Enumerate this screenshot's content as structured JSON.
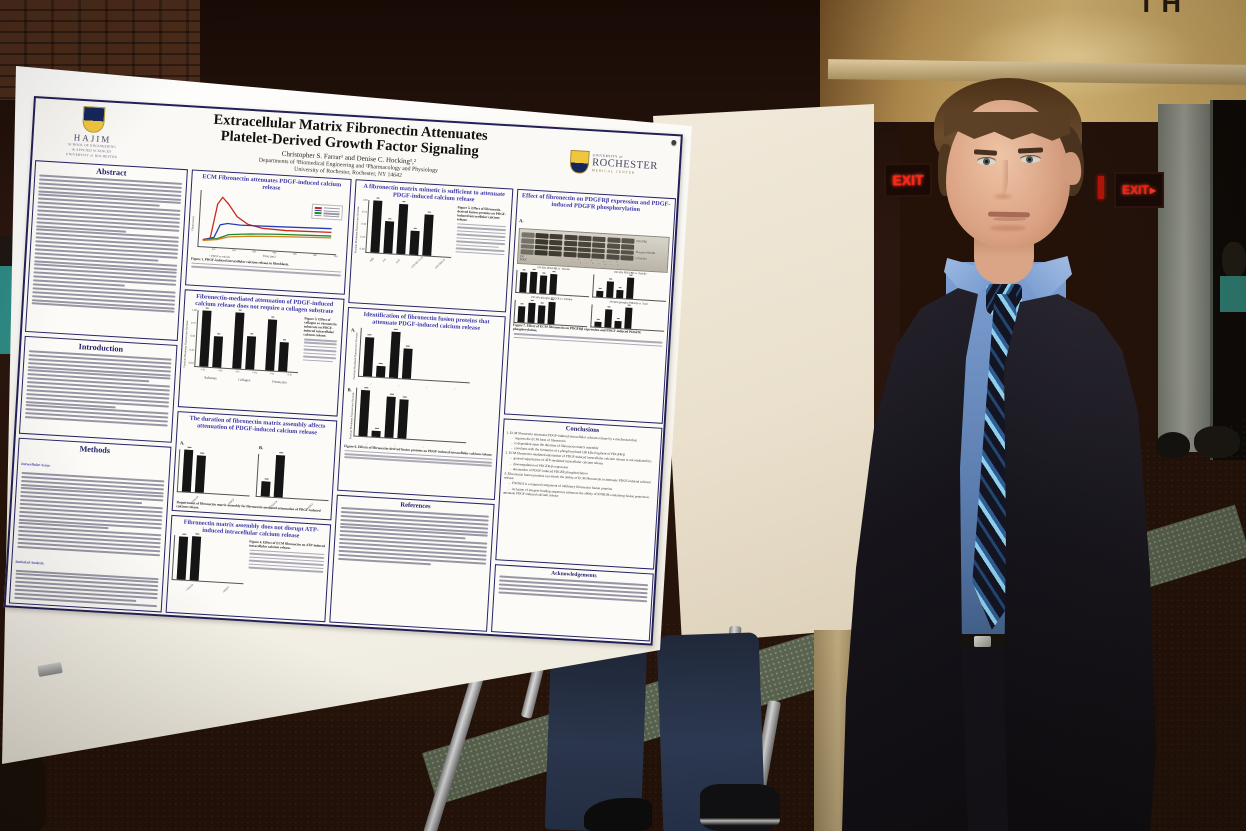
{
  "photo": {
    "top_sign_fragment": "TH",
    "exit_sign_left": "EXIT",
    "exit_sign_right": "EXIT",
    "exit_arrow": "▸"
  },
  "poster": {
    "header": {
      "title_line1": "Extracellular Matrix Fibronectin Attenuates",
      "title_line2": "Platelet-Derived Growth Factor Signaling",
      "authors": "Christopher S. Farrar¹ and Denise C. Hocking¹,²",
      "affiliations": "Departments of ¹Biomedical Engineering and ²Pharmacology and Physiology",
      "address": "University of Rochester, Rochester, NY 14642"
    },
    "hajim_logo": {
      "word": "HAJIM",
      "line1": "SCHOOL OF ENGINEERING",
      "line2": "& APPLIED SCIENCES",
      "line3": "UNIVERSITY of ROCHESTER"
    },
    "urmc_logo": {
      "line1": "UNIVERSITY of",
      "line2": "ROCHESTER",
      "line3": "MEDICAL CENTER"
    },
    "sections": {
      "abstract": "Abstract",
      "introduction": "Introduction",
      "methods": "Methods",
      "references": "References",
      "conclusions": "Conclusions",
      "acknowledgements": "Acknowledgements"
    },
    "methods_leads": {
      "assay": "Intracellular Assay:",
      "stats": "Statistical Analysis:"
    },
    "panel_letters": {
      "a": "A.",
      "b": "B.",
      "c": "C.",
      "d": "D.",
      "e": "E."
    },
    "panels": {
      "ecm": {
        "title": "ECM Fibronectin attenuates PDGF-induced calcium release",
        "ylabel": "Fluorescence",
        "xlabel": "Time (sec)",
        "annotation": "↑ PDGF or vehicle",
        "caption_lead": "Figure 1. PDGF-induced intracellular calcium release in fibroblasts."
      },
      "substrate": {
        "title": "Fibronectin-mediated attenuation of PDGF-induced calcium release does not require a collagen substrate",
        "ylabel": "Fraction Maximum Fluorescence Increase",
        "caption_lead": "Figure 3. Effect of collagen or vitronectin substrate on PDGF-induced intracellular calcium release."
      },
      "duration": {
        "title": "The duration of fibronectin matrix assembly affects attenuation of PDGF-induced calcium release",
        "caption_lead": "Requirement of fibronectin matrix assembly for fibronectin-mediated attenuation of PDGF-induced calcium release."
      },
      "atp": {
        "title": "Fibronectin matrix assembly does not disrupt ATP-induced intracellular calcium release",
        "caption_lead": "Figure 4. Effect of ECM fibronectin on ATP-induced intracellular calcium release."
      },
      "mimetic": {
        "title": "A fibronectin matrix mimetic is sufficient to attenuate PDGF-induced calcium release",
        "ylabel": "Fraction Maximum Fluorescence Increase",
        "caption_lead": "Figure 5. Effect of fibronectin-derived fusion proteins on PDGF-induced intracellular calcium release."
      },
      "identification": {
        "title": "Identification of fibronectin fusion proteins that attenuate PDGF-induced calcium release",
        "ylabel": "Fraction Maximum Fluorescence Increase",
        "caption_lead": "Figure 6. Effects of fibronectin-derived fusion proteins on PDGF-induced intracellular calcium release."
      },
      "western": {
        "title": "Effect of fibronectin on PDGFRβ expression and PDGF-induced PDGFR phosphorylation",
        "blot_labels": [
          "PDGFRβ",
          "Phospho-PDGFR",
          "α-Tubulin"
        ],
        "lane_row1_label": "FN",
        "lane_row2_label": "PDGF",
        "lane_marks": "−  +  −  +  −  +  −  +",
        "chart_titles": [
          "190 kDa PDGFRβ vs. Tubulin",
          "160 kDa PDGFRβ vs. Tubulin",
          "190 kDa phospho-PDGFR vs. Tubulin",
          "190 kDa phospho-PDGFR vs. Total"
        ],
        "caption_lead": "Figure 7. Effect of ECM fibronectin on PDGFRβ expression and PDGF-induced PDGFR phosphorylation."
      }
    },
    "conclusions_lines": [
      "1. ECM fibronectin attenuates PDGF-induced intracellular calcium release by a mechanism that:",
      "      –  requires the ECM form of fibronectin",
      "      –  is dependent upon the duration of fibronectin matrix assembly",
      "      –  correlates with the formation of a phosphorylated 190 kDa fragment of PDGFR-β",
      "2. ECM fibronectin-mediated attenuation of PDGF-induced intracellular calcium release is not mediated by:",
      "      –  general suppression of ATP-mediated intracellular calcium release",
      "      –  downregulation of PDGFR-β expression",
      "      –  attenuation of PDGF-induced PDGFR phosphorylation",
      "3. Fibronectin fusion proteins can mimic the ability of ECM fibronectin to attenuate PDGF-induced calcium release:",
      "      –  FNIII1H is a required component of inhibitory fibronectin fusion proteins",
      "      –  inclusion of integrin-binding sequences enhances the ability of FNIII1H-containing fusion proteins to attenuate PDGF-induced calcium release"
    ],
    "axis": {
      "ticks": [
        "1.00",
        "0.75",
        "0.50",
        "0.25",
        "0.00"
      ],
      "pair_labels": [
        "-FN",
        "+FN",
        "-FN",
        "+FN",
        "-FN",
        "+FN"
      ],
      "groups": [
        "Substrate",
        "Collagen",
        "Vitronectin"
      ],
      "mimetic_labels": [
        "PBS",
        "FN",
        "GST",
        "GST/III1-8,10",
        "GST/III8-10"
      ],
      "pv_labels": [
        "+Vehicle",
        "+PDGF"
      ],
      "pv_labels2": [
        "+Vehicle",
        "+PDGF"
      ]
    }
  },
  "chart_data": {
    "pdgf_line": {
      "type": "line",
      "xlabel": "Time (sec)",
      "ylabel": "Fluorescence",
      "xmax": 700,
      "xticks": [
        "100",
        "200",
        "300",
        "400",
        "500",
        "600",
        "700"
      ],
      "series": [
        {
          "color": "#c62a1e",
          "points": [
            [
              0,
              0.06
            ],
            [
              40,
              0.1
            ],
            [
              70,
              0.85
            ],
            [
              95,
              1.0
            ],
            [
              130,
              0.86
            ],
            [
              180,
              0.6
            ],
            [
              240,
              0.45
            ],
            [
              320,
              0.38
            ],
            [
              450,
              0.36
            ],
            [
              700,
              0.38
            ]
          ]
        },
        {
          "color": "#2a3fb4",
          "points": [
            [
              0,
              0.05
            ],
            [
              60,
              0.12
            ],
            [
              90,
              0.4
            ],
            [
              130,
              0.44
            ],
            [
              200,
              0.42
            ],
            [
              350,
              0.43
            ],
            [
              700,
              0.46
            ]
          ]
        },
        {
          "color": "#1f8a2d",
          "points": [
            [
              0,
              0.05
            ],
            [
              80,
              0.1
            ],
            [
              140,
              0.2
            ],
            [
              250,
              0.24
            ],
            [
              400,
              0.27
            ],
            [
              700,
              0.3
            ]
          ]
        },
        {
          "color": "#d5821e",
          "points": [
            [
              0,
              0.04
            ],
            [
              80,
              0.08
            ],
            [
              140,
              0.15
            ],
            [
              250,
              0.19
            ],
            [
              400,
              0.22
            ],
            [
              700,
              0.26
            ]
          ]
        }
      ]
    },
    "substrate_bars": {
      "type": "bar",
      "values": [
        1.0,
        0.55,
        1.0,
        0.58,
        0.9,
        0.52
      ]
    },
    "duration_bars_a": {
      "type": "bar",
      "values": [
        1.0,
        0.88
      ]
    },
    "duration_bars_b": {
      "type": "bar",
      "values": [
        0.35,
        1.0
      ]
    },
    "atp_bars": {
      "type": "bar",
      "values": [
        0.96,
        1.0
      ]
    },
    "mimetic_bars": {
      "type": "bar",
      "values": [
        1.0,
        0.6,
        0.95,
        0.45,
        0.78
      ]
    },
    "ident_bars_a": {
      "type": "bar",
      "values": [
        0.8,
        0.22,
        0.95,
        0.62
      ]
    },
    "ident_bars_b": {
      "type": "bar",
      "values": [
        0.95,
        0.12,
        0.85,
        0.8
      ]
    },
    "western_bars": [
      {
        "values": [
          0.9,
          0.97,
          0.82,
          0.9
        ]
      },
      {
        "values": [
          0.3,
          0.75,
          0.35,
          0.95
        ]
      },
      {
        "values": [
          0.75,
          0.9,
          0.8,
          1.0
        ]
      },
      {
        "values": [
          0.25,
          0.8,
          0.3,
          0.95
        ]
      }
    ]
  }
}
